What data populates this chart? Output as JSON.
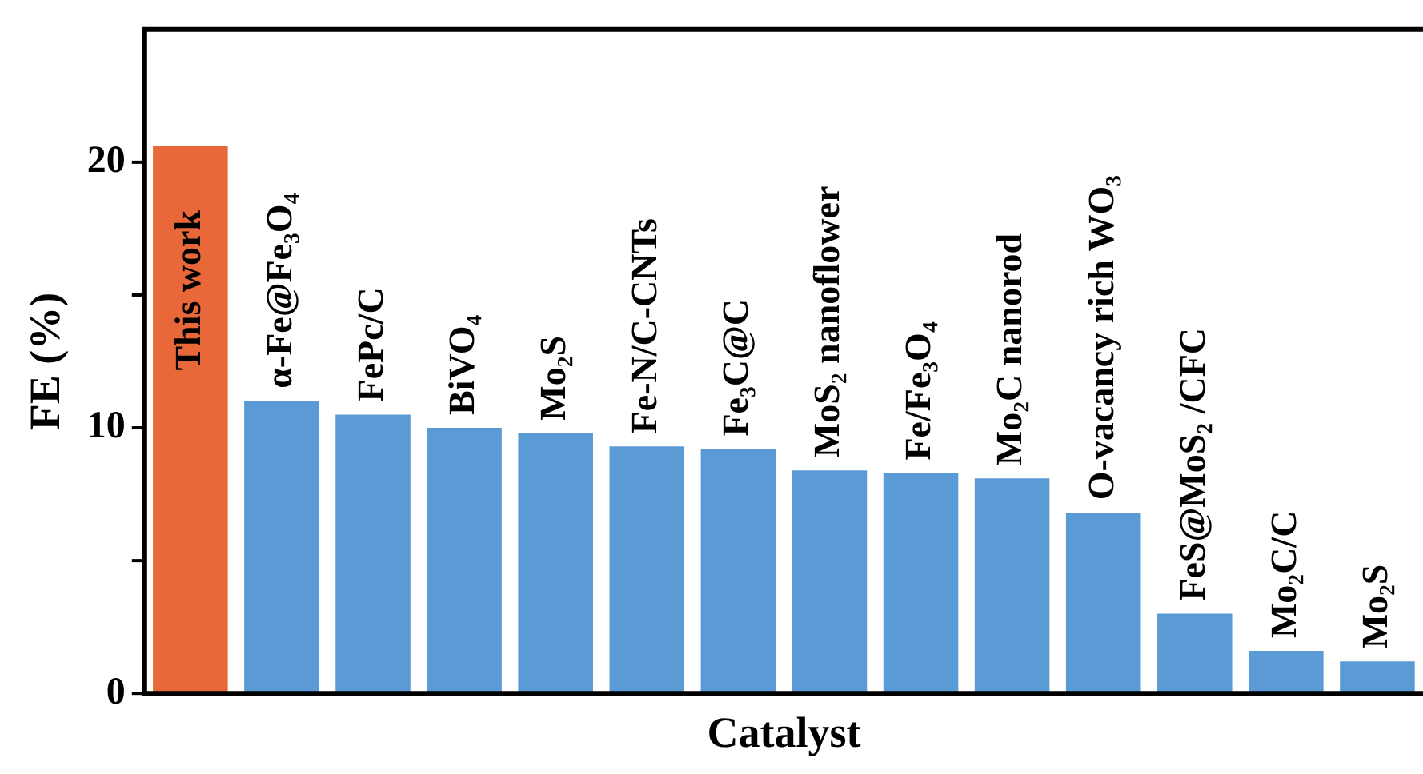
{
  "chart_data": {
    "type": "bar",
    "xlabel": "Catalyst",
    "ylabel": "FE (%)",
    "categories": [
      "This work",
      "α-Fe@Fe₃O₄",
      "FePc/C",
      "BiVO₄",
      "Mo₂S",
      "Fe-N/C-CNTs",
      "Fe₃C@C",
      "MoS₂ nanoflower",
      "Fe/Fe₃O₄",
      "Mo₂C nanorod",
      "O-vacancy rich WO₃",
      "FeS@MoS₂ /CFC",
      "Mo₂C/C",
      "Mo₂S"
    ],
    "values": [
      20.6,
      11.0,
      10.5,
      10.0,
      9.8,
      9.3,
      9.2,
      8.4,
      8.3,
      8.1,
      6.8,
      3.0,
      1.6,
      1.2
    ],
    "colors": [
      "#e8683a",
      "#5b9bd5",
      "#5b9bd5",
      "#5b9bd5",
      "#5b9bd5",
      "#5b9bd5",
      "#5b9bd5",
      "#5b9bd5",
      "#5b9bd5",
      "#5b9bd5",
      "#5b9bd5",
      "#5b9bd5",
      "#5b9bd5",
      "#5b9bd5"
    ],
    "ylim": [
      0,
      25
    ],
    "yticks": [
      0,
      {
        "value": 5,
        "label": null
      },
      10,
      {
        "value": 15,
        "label": null
      },
      20
    ],
    "grid": false,
    "legend": false
  }
}
